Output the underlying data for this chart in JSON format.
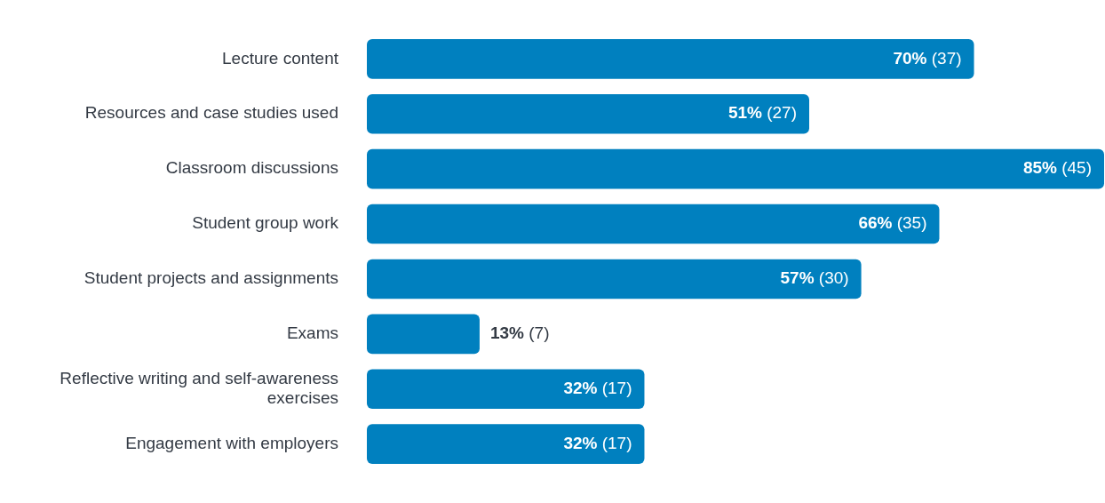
{
  "chart_data": {
    "type": "bar",
    "orientation": "horizontal",
    "categories": [
      "Lecture content",
      "Resources and case studies used",
      "Classroom discussions",
      "Student group work",
      "Student projects and assignments",
      "Exams",
      "Reflective writing and self-awareness exercises",
      "Engagement with employers"
    ],
    "values": [
      70,
      51,
      85,
      66,
      57,
      13,
      32,
      32
    ],
    "value_labels": [
      "70% (37)",
      "51% (27)",
      "85% (45)",
      "66% (35)",
      "57% (30)",
      "13% (7)",
      "32% (17)",
      "32% (17)"
    ],
    "color": "#0080bf",
    "xlim": [
      0,
      85
    ],
    "tick_labels": "y",
    "legend": false
  }
}
